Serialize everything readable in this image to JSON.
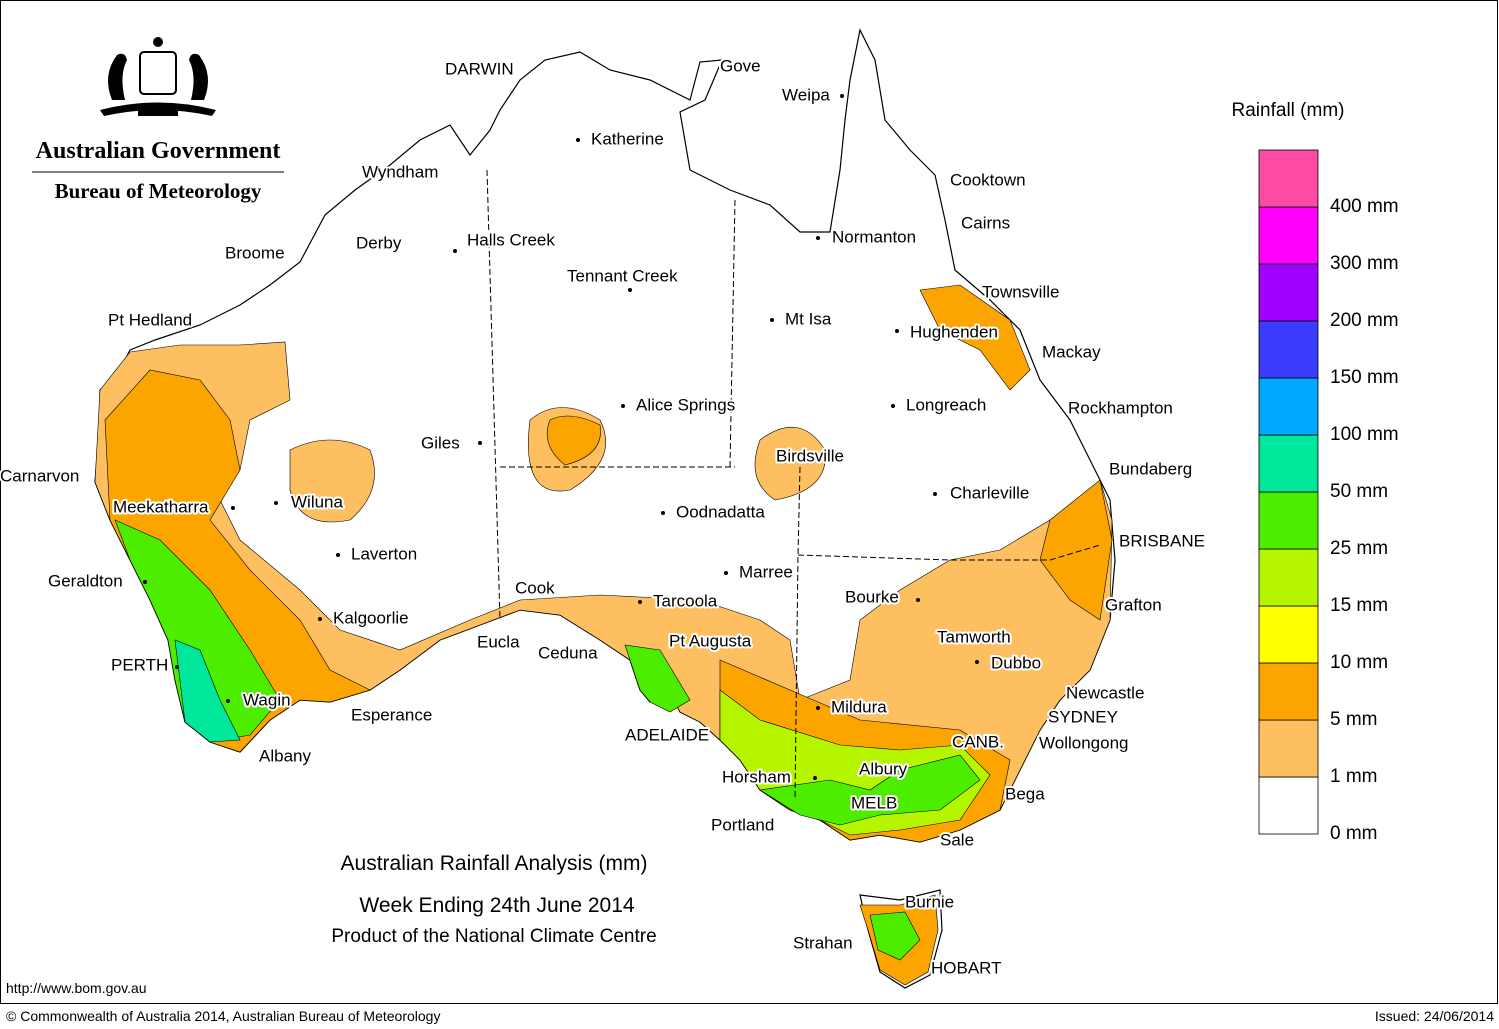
{
  "header": {
    "agency": "Australian Government",
    "bureau": "Bureau of Meteorology"
  },
  "title": {
    "line1": "Australian Rainfall Analysis (mm)",
    "line2": "Week Ending 24th June 2014",
    "line3": "Product of the National Climate Centre"
  },
  "legend": {
    "title": "Rainfall (mm)",
    "bins": [
      {
        "label": "0 mm",
        "color": "#ffffff"
      },
      {
        "label": "1 mm",
        "color": "#fdbf60"
      },
      {
        "label": "5 mm",
        "color": "#fca500"
      },
      {
        "label": "10 mm",
        "color": "#ffff00"
      },
      {
        "label": "15 mm",
        "color": "#b6f500"
      },
      {
        "label": "25 mm",
        "color": "#4ded00"
      },
      {
        "label": "50 mm",
        "color": "#00e69a"
      },
      {
        "label": "100 mm",
        "color": "#00a9ff"
      },
      {
        "label": "150 mm",
        "color": "#3c3cff"
      },
      {
        "label": "200 mm",
        "color": "#a000ff"
      },
      {
        "label": "300 mm",
        "color": "#ff00ff"
      },
      {
        "label": "400 mm",
        "color": "#ff4aa3"
      }
    ]
  },
  "places": [
    "DARWIN",
    "Gove",
    "Weipa",
    "Katherine",
    "Wyndham",
    "Cooktown",
    "Cairns",
    "Normanton",
    "Derby",
    "Halls Creek",
    "Broome",
    "Tennant Creek",
    "Townsville",
    "Pt Hedland",
    "Mt Isa",
    "Hughenden",
    "Mackay",
    "Alice Springs",
    "Longreach",
    "Rockhampton",
    "Giles",
    "Birdsville",
    "Bundaberg",
    "Carnarvon",
    "Charleville",
    "Meekatharra",
    "Wiluna",
    "Oodnadatta",
    "BRISBANE",
    "Laverton",
    "Marree",
    "Geraldton",
    "Cook",
    "Bourke",
    "Tarcoola",
    "Grafton",
    "Kalgoorlie",
    "Tamworth",
    "Eucla",
    "Pt Augusta",
    "Ceduna",
    "Dubbo",
    "PERTH",
    "Newcastle",
    "Wagin",
    "Mildura",
    "Esperance",
    "SYDNEY",
    "ADELAIDE",
    "CANB.",
    "Wollongong",
    "Albany",
    "Albury",
    "Horsham",
    "Bega",
    "MELB",
    "Portland",
    "Sale",
    "Burnie",
    "Strahan",
    "HOBART"
  ],
  "footer": {
    "url": "http://www.bom.gov.au",
    "copyright": "© Commonwealth of Australia 2014, Australian Bureau of Meteorology",
    "issued": "Issued: 24/06/2014"
  }
}
